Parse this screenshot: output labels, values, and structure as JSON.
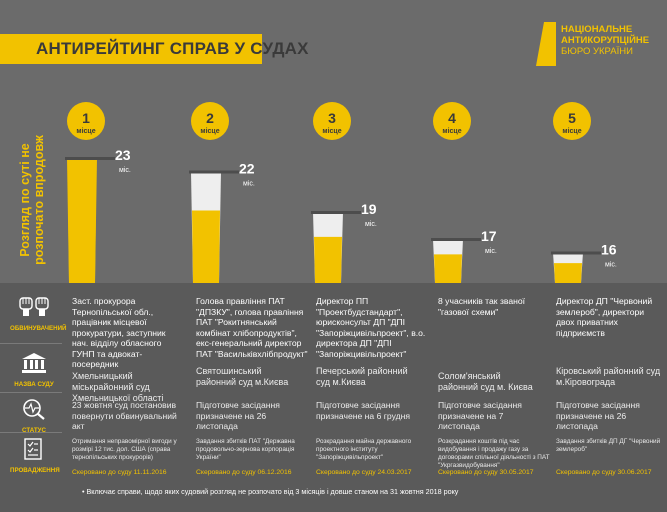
{
  "header": {
    "title": "АНТИРЕЙТИНГ СПРАВ У СУДАХ",
    "logo_lines": [
      "НАЦІОНАЛЬНЕ",
      "АНТИКОРУПЦІЙНЕ",
      "БЮРО УКРАЇНИ"
    ]
  },
  "vertical_caption": [
    "Розгляд по суті не",
    "розпочато впродовж"
  ],
  "colors": {
    "accent": "#f2c200",
    "bar_fill": "#eeeeee",
    "marker": "#4d4d4d",
    "background": "#6b6b6b"
  },
  "chart_data": {
    "type": "bar",
    "categories": [
      "1",
      "2",
      "3",
      "4",
      "5"
    ],
    "rank_labels": [
      "1",
      "2",
      "3",
      "4",
      "5"
    ],
    "rank_word": "місце",
    "values": [
      23,
      22,
      19,
      17,
      16
    ],
    "value_unit": "міс."
  },
  "row_labels": {
    "accused": "ОБВИНУВАЧЕНИЙ",
    "court": "НАЗВА СУДУ",
    "status": "СТАТУС",
    "proceeding": "ПРОВАДЖЕННЯ"
  },
  "cases": [
    {
      "accused": "Заст. прокурора Тернопільської обл., працівник місцевої прокуратури, заступник нач. відділу обласного ГУНП та адвокат-посередник",
      "court": "Хмельницький міськрайонний суд Хмельницької області",
      "status": "23 жовтня суд постановив повернути обвинувальний акт",
      "loss": "Отримання неправомірної вигоди у розмірі 12 тис. дол. США (справа тернопільських прокурорів)",
      "sent": "Скеровано до суду 11.11.2016"
    },
    {
      "accused": "Голова правління ПАТ \"ДПЗКУ\", голова правління ПАТ \"Рокитнянський комбінат хлібопродуктів\", екс-генеральний директор ПАТ \"Васильківхлібпродукт\"",
      "court": "Святошинський районний суд м.Києва",
      "status": "Підготовче засідання призначене на 26 листопада",
      "loss": "Завдання збитків ПАТ \"Державна продовольчо-зернова корпорація України\"",
      "sent": "Скеровано до суду 06.12.2016"
    },
    {
      "accused": "Директор ПП \"Проектбудстандарт\", юрисконсульт ДП \"ДПІ \"Запоріжцивільпроект\", в.о. директора ДП \"ДПІ \"Запоріжцивільпроект\"",
      "court": "Печерський районний суд м.Києва",
      "status": "Підготовче засідання призначене на 6 грудня",
      "loss": "Розкрадання майна державного проектного інституту \"Запоріжцивільпроект\"",
      "sent": "Скеровано до суду 24.03.2017"
    },
    {
      "accused": "8 учасників так званої \"газової схеми\"",
      "court": "Солом'янський районний суд м. Києва",
      "status": "Підготовче засідання призначене на 7 листопада",
      "loss": "Розкрадання коштів під час видобування і продажу газу за договорами спільної діяльності з ПАТ \"Укргазвидобування\"",
      "sent": "Скеровано до суду 30.05.2017"
    },
    {
      "accused": "Директор ДП \"Червоний землероб\", директори двох приватних підприємств",
      "court": "Кіровський районний суд м.Кіровограда",
      "status": "Підготовче засідання призначене на 26 листопада",
      "loss": "Завдання збитків ДП ДГ \"Червоний землероб\"",
      "sent": "Скеровано до суду 30.06.2017"
    }
  ],
  "footnote": "• Включає справи, щодо яких судовий розгляд не розпочато від 3 місяців і довше станом на 31 жовтня 2018 року"
}
